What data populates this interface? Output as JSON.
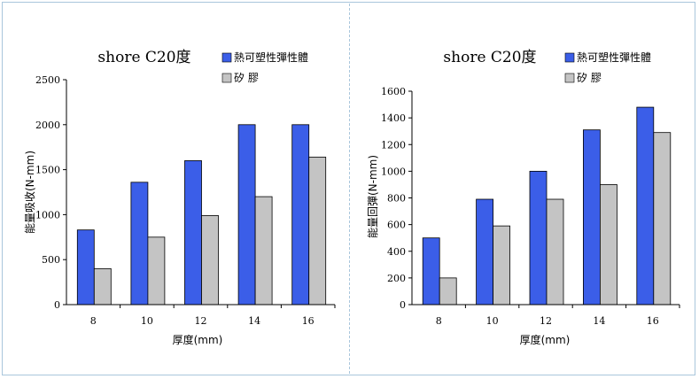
{
  "chart_data": [
    {
      "type": "bar",
      "title": "shore C20度",
      "categories": [
        "8",
        "10",
        "12",
        "14",
        "16"
      ],
      "series": [
        {
          "name": "熱可塑性彈性體",
          "values": [
            830,
            1360,
            1600,
            2000,
            2000
          ],
          "color": "#3b5ee8"
        },
        {
          "name": "矽 膠",
          "values": [
            400,
            750,
            990,
            1200,
            1640
          ],
          "color": "#c4c4c4"
        }
      ],
      "xlabel": "厚度(mm)",
      "ylabel": "能量吸收(N-mm)",
      "ylim": [
        0,
        2500
      ],
      "yticks": [
        0,
        500,
        1000,
        1500,
        2000,
        2500
      ],
      "grid": false,
      "legend_position": "top-right"
    },
    {
      "type": "bar",
      "title": "shore C20度",
      "categories": [
        "8",
        "10",
        "12",
        "14",
        "16"
      ],
      "series": [
        {
          "name": "熱可塑性彈性體",
          "values": [
            500,
            790,
            1000,
            1310,
            1480
          ],
          "color": "#3b5ee8"
        },
        {
          "name": "矽 膠",
          "values": [
            200,
            590,
            790,
            900,
            1290
          ],
          "color": "#c4c4c4"
        }
      ],
      "xlabel": "厚度(mm)",
      "ylabel": "能量回彈(N-mm)",
      "ylim": [
        0,
        1600
      ],
      "yticks": [
        "0",
        "200",
        "400",
        "600",
        "800",
        "1000",
        "1200",
        "1400",
        "1600"
      ],
      "grid": false,
      "legend_position": "top-right"
    }
  ]
}
